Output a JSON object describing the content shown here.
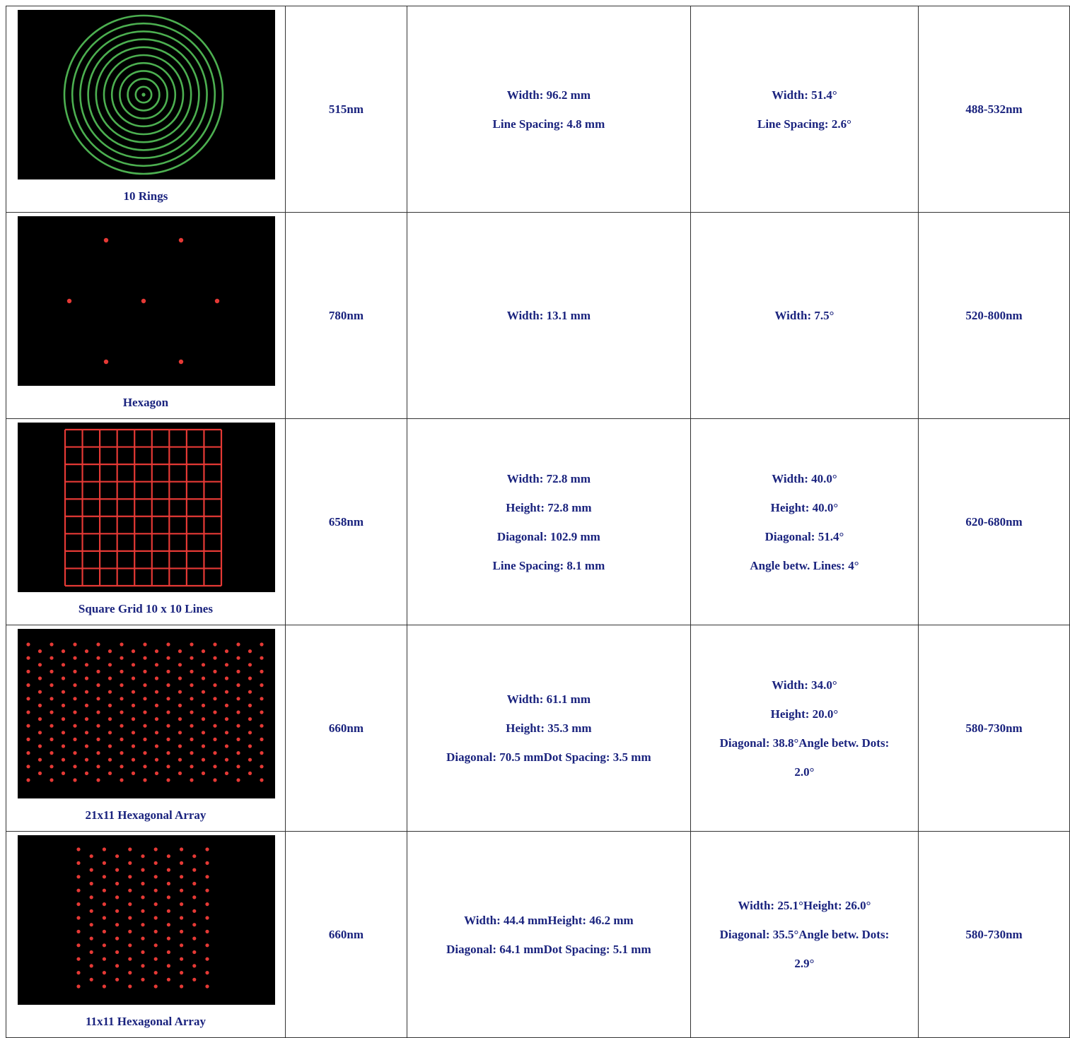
{
  "colors": {
    "text": "#1a237e",
    "border": "#333333",
    "pattern_background": "#000000",
    "green_laser": "#4caf50",
    "red_laser": "#e53935"
  },
  "rows": [
    {
      "pattern_name": "10 Rings",
      "pattern_type": "concentric-rings",
      "wavelength": "515nm",
      "dimensions": [
        "Width: 96.2 mm",
        "Line Spacing: 4.8 mm"
      ],
      "angles": [
        "Width: 51.4°",
        "Line Spacing: 2.6°"
      ],
      "range": "488-532nm"
    },
    {
      "pattern_name": "Hexagon",
      "pattern_type": "hexagon-dots",
      "wavelength": "780nm",
      "dimensions": [
        "Width: 13.1 mm"
      ],
      "angles": [
        "Width: 7.5°"
      ],
      "range": "520-800nm"
    },
    {
      "pattern_name": "Square Grid 10 x 10 Lines",
      "pattern_type": "square-grid",
      "wavelength": "658nm",
      "dimensions": [
        "Width: 72.8 mm",
        "Height: 72.8 mm",
        "Diagonal: 102.9 mm",
        "Line Spacing: 8.1 mm"
      ],
      "angles": [
        "Width: 40.0°",
        "Height: 40.0°",
        "Diagonal: 51.4°",
        "Angle betw. Lines: 4°"
      ],
      "range": "620-680nm"
    },
    {
      "pattern_name": "21x11 Hexagonal Array",
      "pattern_type": "hex-array-21x11",
      "wavelength": "660nm",
      "dimensions": [
        "Width: 61.1 mm",
        "Height: 35.3 mm",
        "Diagonal: 70.5 mmDot Spacing: 3.5 mm"
      ],
      "angles": [
        "Width: 34.0°",
        "Height: 20.0°",
        "Diagonal: 38.8°Angle betw. Dots:",
        "2.0°"
      ],
      "range": "580-730nm"
    },
    {
      "pattern_name": "11x11 Hexagonal Array",
      "pattern_type": "hex-array-11x11",
      "wavelength": "660nm",
      "dimensions": [
        "Width: 44.4 mmHeight: 46.2 mm",
        "Diagonal: 64.1 mmDot Spacing: 5.1 mm"
      ],
      "angles": [
        "Width: 25.1°Height: 26.0°",
        "Diagonal: 35.5°Angle betw. Dots:",
        "2.9°"
      ],
      "range": "580-730nm"
    }
  ]
}
